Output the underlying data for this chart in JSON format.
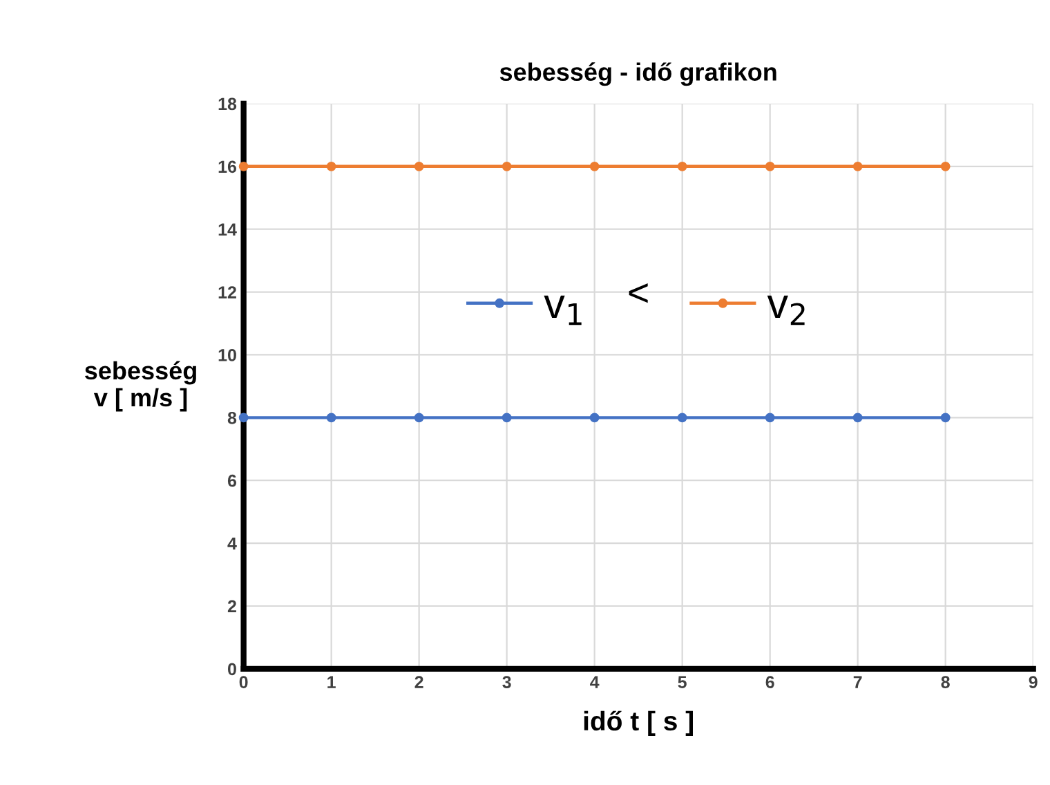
{
  "chart_data": {
    "type": "line",
    "title": "sebesség - idő grafikon",
    "xlabel": "idő t [ s ]",
    "ylabel": "sebesség\nv [ m/s ]",
    "x": [
      0,
      1,
      2,
      3,
      4,
      5,
      6,
      7,
      8
    ],
    "series": [
      {
        "name": "v$_{1}$",
        "color": "#4472c4",
        "values": [
          8,
          8,
          8,
          8,
          8,
          8,
          8,
          8,
          8
        ]
      },
      {
        "name": "v$_{2}$",
        "color": "#ed7d31",
        "values": [
          16,
          16,
          16,
          16,
          16,
          16,
          16,
          16,
          16
        ]
      }
    ],
    "annotations": [
      "<"
    ],
    "xlim": [
      0,
      9
    ],
    "xticks": [
      0,
      1,
      2,
      3,
      4,
      5,
      6,
      7,
      8,
      9
    ],
    "ylim": [
      0,
      18
    ],
    "yticks": [
      0,
      2,
      4,
      6,
      8,
      10,
      12,
      14,
      16,
      18
    ],
    "grid": true,
    "legend": "center",
    "marker": "circle",
    "line_style": "solid"
  }
}
